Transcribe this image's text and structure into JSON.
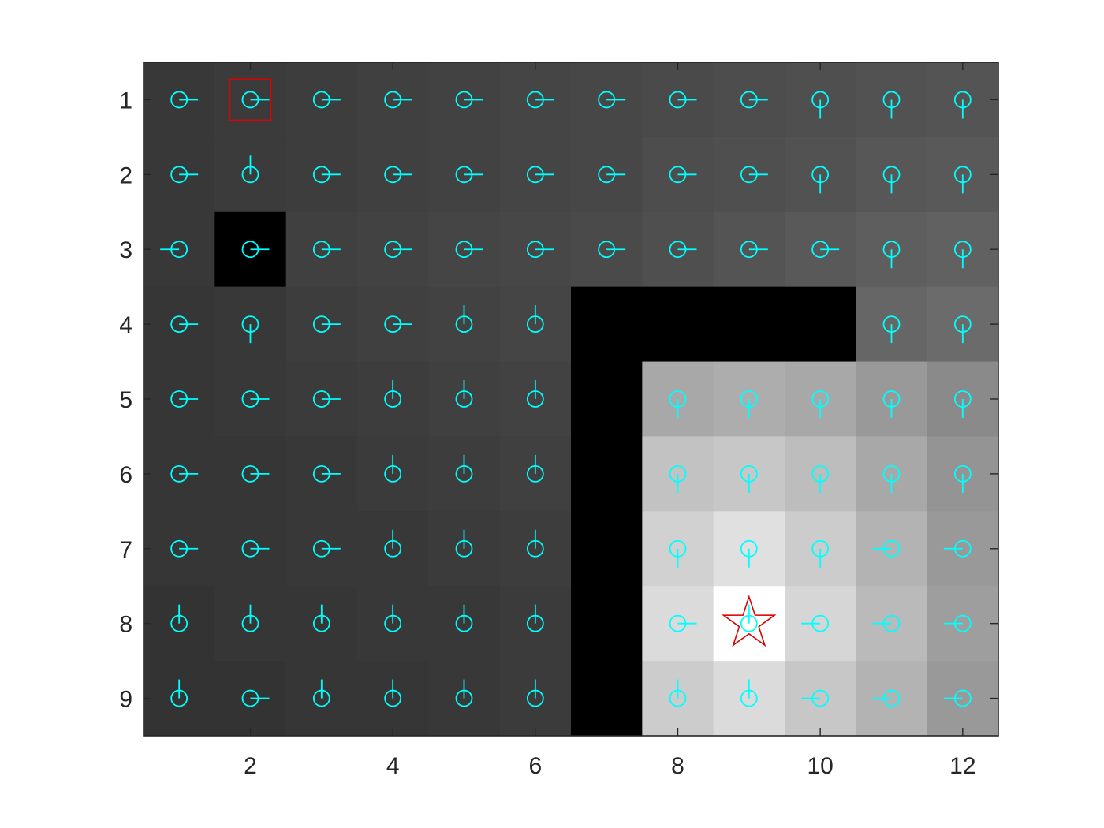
{
  "chart_data": {
    "type": "heatmap",
    "title": "",
    "xlabel": "",
    "ylabel": "",
    "xlim": [
      0.5,
      12.5
    ],
    "ylim": [
      0.5,
      9.5
    ],
    "y_reversed": true,
    "grid": false,
    "x_ticks": [
      2,
      4,
      6,
      8,
      10,
      12
    ],
    "x_tick_labels": [
      "2",
      "4",
      "6",
      "8",
      "10",
      "12"
    ],
    "y_ticks": [
      1,
      2,
      3,
      4,
      5,
      6,
      7,
      8,
      9
    ],
    "y_tick_labels": [
      "1",
      "2",
      "3",
      "4",
      "5",
      "6",
      "7",
      "8",
      "9"
    ],
    "colormap": "gray",
    "cell_values": [
      [
        0.22,
        0.23,
        0.24,
        0.25,
        0.26,
        0.27,
        0.28,
        0.29,
        0.3,
        0.31,
        0.32,
        0.33
      ],
      [
        0.22,
        0.23,
        0.24,
        0.25,
        0.26,
        0.27,
        0.28,
        0.3,
        0.31,
        0.32,
        0.34,
        0.35
      ],
      [
        0.22,
        0.0,
        0.25,
        0.26,
        0.27,
        0.28,
        0.29,
        0.31,
        0.33,
        0.35,
        0.37,
        0.38
      ],
      [
        0.21,
        0.22,
        0.24,
        0.25,
        0.26,
        0.27,
        0.0,
        0.0,
        0.0,
        0.0,
        0.4,
        0.42
      ],
      [
        0.21,
        0.22,
        0.23,
        0.24,
        0.25,
        0.26,
        0.0,
        0.66,
        0.68,
        0.66,
        0.6,
        0.54
      ],
      [
        0.21,
        0.21,
        0.22,
        0.23,
        0.24,
        0.25,
        0.0,
        0.76,
        0.78,
        0.74,
        0.66,
        0.58
      ],
      [
        0.21,
        0.21,
        0.22,
        0.22,
        0.23,
        0.24,
        0.0,
        0.82,
        0.88,
        0.8,
        0.7,
        0.6
      ],
      [
        0.2,
        0.21,
        0.21,
        0.22,
        0.22,
        0.23,
        0.0,
        0.86,
        1.0,
        0.84,
        0.73,
        0.62
      ],
      [
        0.2,
        0.2,
        0.21,
        0.21,
        0.22,
        0.23,
        0.0,
        0.8,
        0.86,
        0.78,
        0.7,
        0.6
      ]
    ],
    "policy_arrows": [
      [
        "E",
        "E",
        "E",
        "E",
        "E",
        "E",
        "E",
        "E",
        "E",
        "S",
        "S",
        "S"
      ],
      [
        "E",
        "N",
        "E",
        "E",
        "E",
        "E",
        "E",
        "E",
        "E",
        "S",
        "S",
        "S"
      ],
      [
        "W",
        "E",
        "E",
        "E",
        "E",
        "E",
        "E",
        "E",
        "E",
        "E",
        "S",
        "S"
      ],
      [
        "E",
        "S",
        "E",
        "E",
        "N",
        "N",
        "",
        "",
        "",
        "",
        "S",
        "S"
      ],
      [
        "E",
        "E",
        "E",
        "N",
        "N",
        "N",
        "",
        "S",
        "S",
        "S",
        "S",
        "S"
      ],
      [
        "E",
        "E",
        "E",
        "N",
        "N",
        "N",
        "",
        "S",
        "S",
        "S",
        "S",
        "S"
      ],
      [
        "E",
        "E",
        "E",
        "N",
        "N",
        "N",
        "",
        "S",
        "S",
        "S",
        "W",
        "W"
      ],
      [
        "N",
        "N",
        "N",
        "N",
        "N",
        "N",
        "",
        "E",
        "N",
        "W",
        "W",
        "W"
      ],
      [
        "N",
        "E",
        "N",
        "N",
        "N",
        "N",
        "",
        "N",
        "N",
        "W",
        "W",
        "W"
      ]
    ],
    "start_cell": {
      "x": 2,
      "y": 1
    },
    "goal_cell": {
      "x": 9,
      "y": 8
    },
    "colors": {
      "arrow": "#00ffff",
      "start_marker": "#e00000",
      "goal_marker": "#e00000",
      "axis": "#262626",
      "blocked_cell": "#000000"
    }
  }
}
